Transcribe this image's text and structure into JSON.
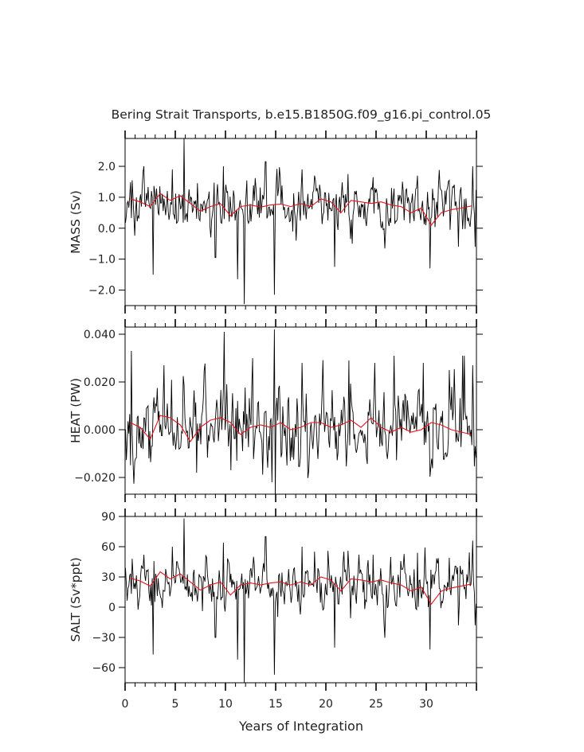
{
  "title": "Bering Strait Transports, b.e15.B1850G.f09_g16.pi_control.05",
  "colors": {
    "raw": "#000000",
    "smooth": "#e8121c",
    "axis": "#000000",
    "text": "#222222"
  },
  "chart_data": {
    "type": "line",
    "title": "Bering Strait Transports, b.e15.B1850G.f09_g16.pi_control.05",
    "xlabel": "Years of Integration",
    "xlim": [
      0,
      35
    ],
    "x_ticks": [
      0,
      5,
      10,
      15,
      20,
      25,
      30
    ],
    "x_tick_labels": [
      "0",
      "5",
      "10",
      "15",
      "20",
      "25",
      "30"
    ],
    "panels": [
      {
        "name": "mass",
        "ylabel": "MASS (Sv)",
        "ylim": [
          -2.5,
          2.9
        ],
        "y_ticks": [
          -2.0,
          -1.0,
          0.0,
          1.0,
          2.0
        ],
        "y_tick_labels": [
          "−2.0",
          "−1.0",
          "0.0",
          "1.0",
          "2.0"
        ],
        "monthly_series": {
          "name": "Monthly mean",
          "description": "black line",
          "mean": 0.75,
          "amplitude": 0.55,
          "events": [
            [
              0.7,
              1.55
            ],
            [
              2.8,
              -1.5
            ],
            [
              4.7,
              1.9
            ],
            [
              5.9,
              2.9
            ],
            [
              7.0,
              -1.1
            ],
            [
              9.0,
              -0.95
            ],
            [
              9.8,
              2.0
            ],
            [
              11.2,
              -1.65
            ],
            [
              11.85,
              -2.45
            ],
            [
              14.0,
              2.15
            ],
            [
              14.9,
              -2.15
            ],
            [
              17.6,
              1.9
            ],
            [
              18.9,
              1.7
            ],
            [
              20.9,
              -1.25
            ],
            [
              22.2,
              1.75
            ],
            [
              24.7,
              1.65
            ],
            [
              27.5,
              1.9
            ],
            [
              29.1,
              1.7
            ],
            [
              30.4,
              -1.3
            ],
            [
              32.3,
              1.55
            ],
            [
              33.2,
              -0.6
            ],
            [
              34.6,
              2.0
            ],
            [
              34.9,
              -0.6
            ]
          ]
        },
        "annual_series": {
          "name": "Annual mean",
          "description": "red line",
          "x": [
            0.5,
            1.5,
            2.5,
            3.5,
            4.5,
            5.5,
            6.5,
            7.5,
            8.5,
            9.5,
            10.5,
            11.5,
            12.5,
            13.5,
            14.5,
            15.5,
            16.5,
            17.5,
            18.5,
            19.5,
            20.5,
            21.5,
            22.5,
            23.5,
            24.5,
            25.5,
            26.5,
            27.5,
            28.5,
            29.5,
            30.5,
            31.5,
            32.5,
            33.5,
            34.5
          ],
          "y": [
            0.95,
            0.85,
            0.7,
            1.12,
            0.9,
            1.05,
            0.8,
            0.55,
            0.7,
            0.8,
            0.4,
            0.7,
            0.75,
            0.68,
            0.75,
            0.78,
            0.7,
            0.8,
            0.7,
            0.95,
            0.85,
            0.5,
            0.9,
            0.85,
            0.8,
            0.85,
            0.75,
            0.7,
            0.5,
            0.65,
            0.1,
            0.5,
            0.6,
            0.65,
            0.72
          ]
        }
      },
      {
        "name": "heat",
        "ylabel": "HEAT (PW)",
        "ylim": [
          -0.027,
          0.043
        ],
        "y_ticks": [
          -0.02,
          0.0,
          0.02,
          0.04
        ],
        "y_tick_labels": [
          "−0.020",
          "0.000",
          "0.020",
          "0.040"
        ],
        "monthly_series": {
          "name": "Monthly mean",
          "description": "black line",
          "mean": 0.002,
          "amplitude": 0.011,
          "events": [
            [
              0.6,
              0.033
            ],
            [
              2.4,
              -0.012
            ],
            [
              3.9,
              0.027
            ],
            [
              6.0,
              -0.017
            ],
            [
              7.1,
              -0.018
            ],
            [
              9.9,
              0.041
            ],
            [
              11.1,
              -0.013
            ],
            [
              12.7,
              0.03
            ],
            [
              14.6,
              -0.022
            ],
            [
              14.85,
              0.042
            ],
            [
              14.95,
              -0.027
            ],
            [
              17.6,
              0.028
            ],
            [
              19.5,
              0.031
            ],
            [
              22.3,
              0.029
            ],
            [
              24.9,
              0.028
            ],
            [
              26.8,
              0.031
            ],
            [
              29.7,
              0.028
            ],
            [
              32.3,
              0.025
            ],
            [
              33.6,
              0.031
            ],
            [
              34.6,
              0.027
            ]
          ]
        },
        "annual_series": {
          "name": "Annual mean",
          "description": "red line",
          "x": [
            0.5,
            1.5,
            2.5,
            3.5,
            4.5,
            5.5,
            6.5,
            7.5,
            8.5,
            9.5,
            10.5,
            11.5,
            12.5,
            13.5,
            14.5,
            15.5,
            16.5,
            17.5,
            18.5,
            19.5,
            20.5,
            21.5,
            22.5,
            23.5,
            24.5,
            25.5,
            26.5,
            27.5,
            28.5,
            29.5,
            30.5,
            31.5,
            32.5,
            33.5,
            34.5
          ],
          "y": [
            0.003,
            0.001,
            -0.004,
            0.006,
            0.005,
            0.002,
            -0.005,
            0.001,
            0.004,
            0.005,
            0.003,
            -0.002,
            0.001,
            0.002,
            0.001,
            0.003,
            0.0,
            0.001,
            0.003,
            0.003,
            0.001,
            0.002,
            0.004,
            0.001,
            0.005,
            0.001,
            -0.001,
            0.001,
            -0.001,
            0.0,
            0.003,
            0.002,
            0.0,
            -0.001,
            -0.002
          ]
        }
      },
      {
        "name": "salt",
        "ylabel": "SALT (Sv*ppt)",
        "ylim": [
          -75,
          90
        ],
        "y_ticks": [
          -60,
          -30,
          0,
          30,
          60,
          90
        ],
        "y_tick_labels": [
          "−60",
          "−30",
          "0",
          "30",
          "60",
          "90"
        ],
        "monthly_series": {
          "name": "Monthly mean",
          "description": "black line",
          "mean": 23,
          "amplitude": 17,
          "events": [
            [
              0.7,
              48
            ],
            [
              2.8,
              -47
            ],
            [
              4.7,
              60
            ],
            [
              5.9,
              88
            ],
            [
              7.0,
              -34
            ],
            [
              9.0,
              -30
            ],
            [
              9.8,
              64
            ],
            [
              11.2,
              -52
            ],
            [
              11.85,
              -75
            ],
            [
              14.0,
              70
            ],
            [
              14.9,
              -67
            ],
            [
              17.6,
              60
            ],
            [
              18.9,
              55
            ],
            [
              20.9,
              -40
            ],
            [
              22.2,
              56
            ],
            [
              24.7,
              52
            ],
            [
              27.5,
              60
            ],
            [
              29.1,
              54
            ],
            [
              30.4,
              -42
            ],
            [
              32.3,
              49
            ],
            [
              33.2,
              -18
            ],
            [
              34.6,
              66
            ],
            [
              34.9,
              -18
            ]
          ]
        },
        "annual_series": {
          "name": "Annual mean",
          "description": "red line",
          "x": [
            0.5,
            1.5,
            2.5,
            3.5,
            4.5,
            5.5,
            6.5,
            7.5,
            8.5,
            9.5,
            10.5,
            11.5,
            12.5,
            13.5,
            14.5,
            15.5,
            16.5,
            17.5,
            18.5,
            19.5,
            20.5,
            21.5,
            22.5,
            23.5,
            24.5,
            25.5,
            26.5,
            27.5,
            28.5,
            29.5,
            30.5,
            31.5,
            32.5,
            33.5,
            34.5
          ],
          "y": [
            29,
            26,
            21,
            35,
            28,
            33,
            25,
            17,
            22,
            25,
            12,
            22,
            24,
            22,
            24,
            25,
            22,
            25,
            22,
            30,
            27,
            16,
            28,
            27,
            25,
            27,
            24,
            22,
            16,
            20,
            3,
            16,
            19,
            21,
            23
          ]
        }
      }
    ]
  }
}
